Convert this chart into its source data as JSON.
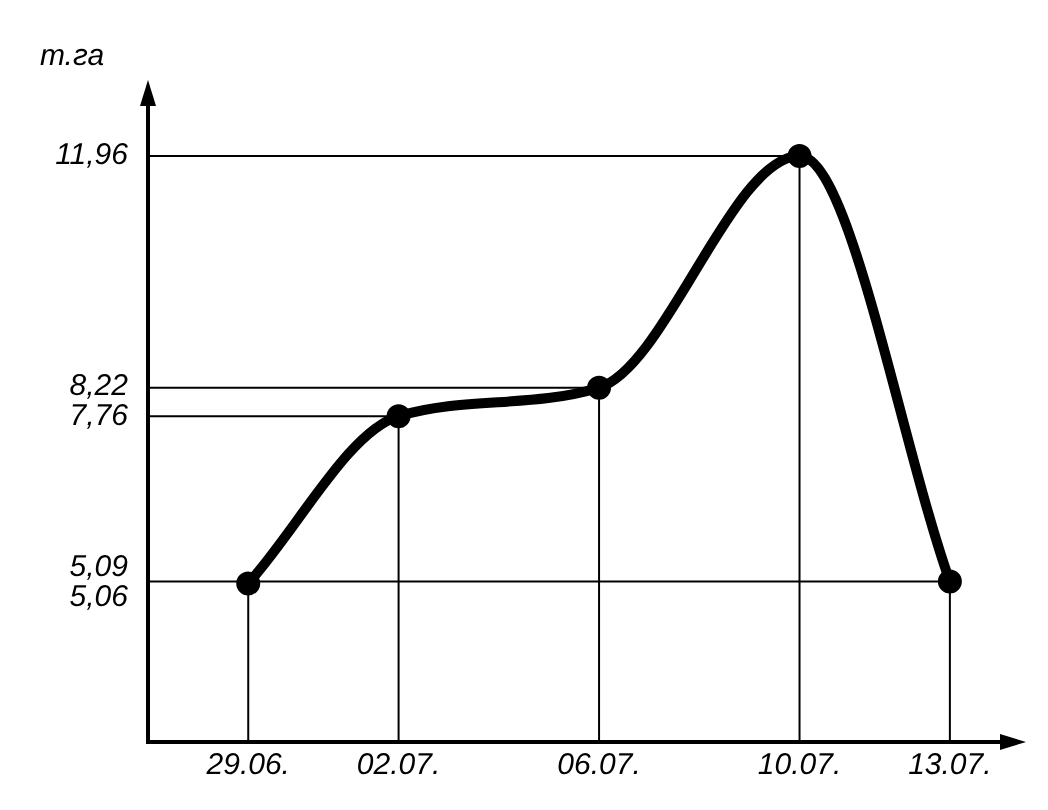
{
  "chart_data": {
    "type": "line",
    "ylabel": "т.га",
    "x": [
      "--06-29",
      "--07-02",
      "--07-06",
      "--07-10",
      "--07-13"
    ],
    "series": [
      {
        "color": "#000000",
        "values": [
          5.06,
          7.76,
          8.22,
          11.96,
          5.09
        ]
      }
    ],
    "xlim": [
      "--06-27",
      "--07-14"
    ],
    "xticks": [
      {
        "value": "--06-29",
        "label": "29.06."
      },
      {
        "value": "--07-02",
        "label": "02.07."
      },
      {
        "value": "--07-06",
        "label": "06.07."
      },
      {
        "value": "--07-10",
        "label": "10.07."
      },
      {
        "value": "--07-13",
        "label": "13.07."
      }
    ],
    "ylim": [
      2.5,
      12.8
    ],
    "yticks": [
      {
        "value": 11.96,
        "label": "11,96"
      },
      {
        "value": 8.22,
        "label": "8,22"
      },
      {
        "value": 7.76,
        "label": "7,76"
      },
      {
        "value": 5.09,
        "label": "5,09"
      },
      {
        "value": 5.06,
        "label": "5,06"
      }
    ],
    "ref_lines": [
      {
        "axis": "y",
        "value": 11.96
      },
      {
        "axis": "y",
        "value": 8.22
      },
      {
        "axis": "y",
        "value": 7.76
      },
      {
        "axis": "y",
        "value": 5.09
      },
      {
        "axis": "x",
        "value": "--06-29"
      },
      {
        "axis": "x",
        "value": "--07-02"
      },
      {
        "axis": "x",
        "value": "--07-06"
      },
      {
        "axis": "x",
        "value": "--07-10"
      },
      {
        "axis": "x",
        "value": "--07-13"
      }
    ],
    "grid": false,
    "legend": false,
    "marker": "circle",
    "line_style": "solid"
  }
}
